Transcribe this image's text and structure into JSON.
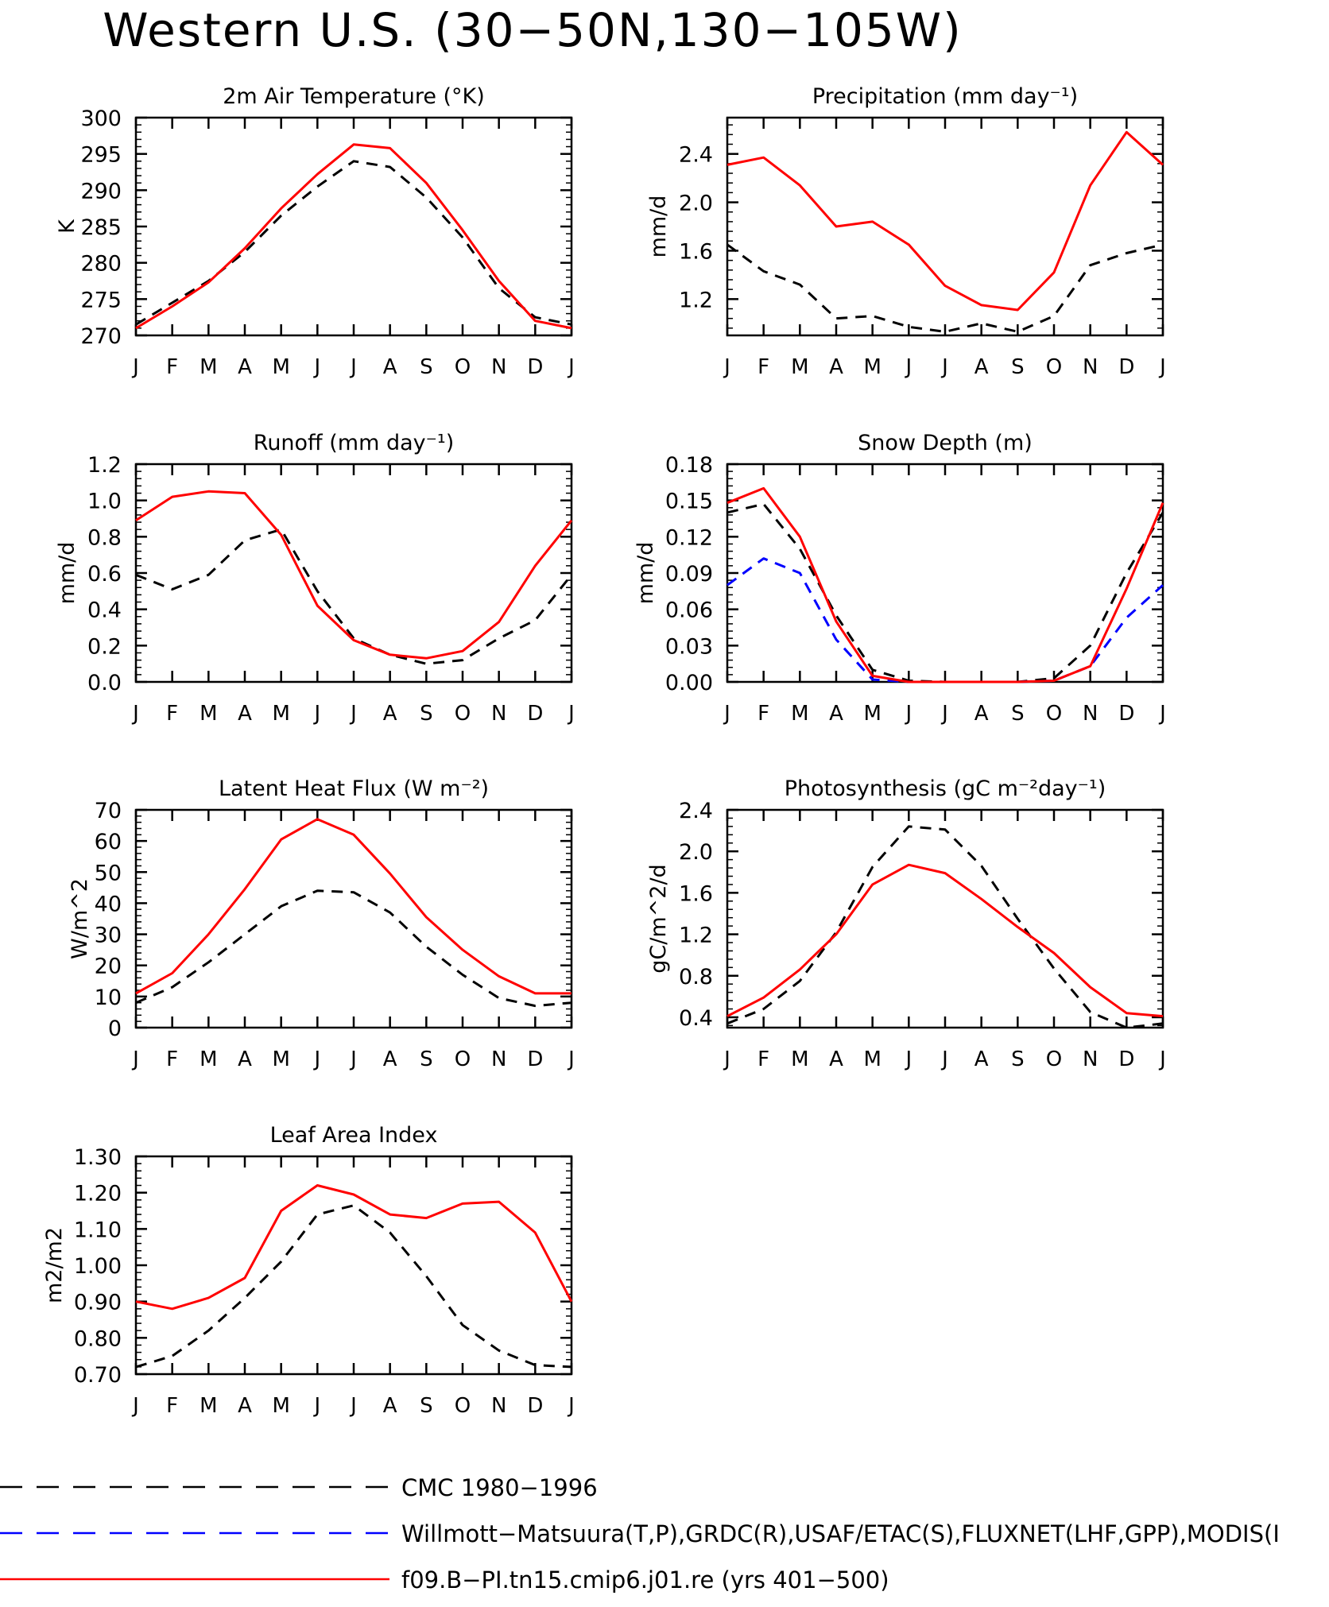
{
  "page": {
    "title": "Western U.S. (30−50N,130−105W)"
  },
  "legend": [
    {
      "label": "CMC 1980−1996",
      "color": "#000000",
      "dash": "dashed"
    },
    {
      "label": "Willmott−Matsuura(T,P),GRDC(R),USAF/ETAC(S),FLUXNET(LHF,GPP),MODIS(I",
      "color": "#0000ff",
      "dash": "dashed"
    },
    {
      "label": "f09.B−PI.tn15.cmip6.j01.re (yrs 401−500)",
      "color": "#ff0000",
      "dash": "solid"
    }
  ],
  "chart_data": [
    {
      "type": "line",
      "title": "2m Air Temperature (°K)",
      "ylabel": "K",
      "x": [
        "J",
        "F",
        "M",
        "A",
        "M",
        "J",
        "J",
        "A",
        "S",
        "O",
        "N",
        "D",
        "J"
      ],
      "ylim": [
        270,
        300
      ],
      "yticks": [
        270,
        275,
        280,
        285,
        290,
        295,
        300
      ],
      "ytick_labels": [
        "270",
        "275",
        "280",
        "285",
        "290",
        "295",
        "300"
      ],
      "series": [
        {
          "color": "#000000",
          "dash": "dashed",
          "values": [
            271.5,
            274.5,
            277.5,
            281.5,
            286.5,
            290.5,
            294,
            293.2,
            289,
            283.5,
            276.5,
            272.5,
            271.5
          ]
        },
        {
          "color": "#ff0000",
          "dash": "solid",
          "values": [
            271,
            274,
            277.3,
            282,
            287.5,
            292.2,
            296.3,
            295.8,
            291,
            284.5,
            277.5,
            272,
            271
          ]
        }
      ]
    },
    {
      "type": "line",
      "title": "Precipitation (mm day⁻¹)",
      "ylabel": "mm/d",
      "x": [
        "J",
        "F",
        "M",
        "A",
        "M",
        "J",
        "J",
        "A",
        "S",
        "O",
        "N",
        "D",
        "J"
      ],
      "ylim": [
        0.9,
        2.7
      ],
      "yticks": [
        1.2,
        1.6,
        2.0,
        2.4
      ],
      "ytick_labels": [
        "1.2",
        "1.6",
        "2.0",
        "2.4"
      ],
      "series": [
        {
          "color": "#000000",
          "dash": "dashed",
          "values": [
            1.65,
            1.43,
            1.32,
            1.04,
            1.06,
            0.97,
            0.93,
            1.0,
            0.93,
            1.06,
            1.48,
            1.58,
            1.65
          ]
        },
        {
          "color": "#ff0000",
          "dash": "solid",
          "values": [
            2.31,
            2.37,
            2.14,
            1.8,
            1.84,
            1.65,
            1.31,
            1.15,
            1.11,
            1.42,
            2.14,
            2.58,
            2.31
          ]
        }
      ]
    },
    {
      "type": "line",
      "title": "Runoff (mm day⁻¹)",
      "ylabel": "mm/d",
      "x": [
        "J",
        "F",
        "M",
        "A",
        "M",
        "J",
        "J",
        "A",
        "S",
        "O",
        "N",
        "D",
        "J"
      ],
      "ylim": [
        0,
        1.2
      ],
      "yticks": [
        0,
        0.2,
        0.4,
        0.6,
        0.8,
        1.0,
        1.2
      ],
      "ytick_labels": [
        "0.0",
        "0.2",
        "0.4",
        "0.6",
        "0.8",
        "1.0",
        "1.2"
      ],
      "series": [
        {
          "color": "#000000",
          "dash": "dashed",
          "values": [
            0.59,
            0.51,
            0.59,
            0.78,
            0.84,
            0.5,
            0.24,
            0.15,
            0.1,
            0.12,
            0.24,
            0.34,
            0.59
          ]
        },
        {
          "color": "#ff0000",
          "dash": "solid",
          "values": [
            0.89,
            1.02,
            1.05,
            1.04,
            0.81,
            0.42,
            0.23,
            0.15,
            0.13,
            0.17,
            0.33,
            0.64,
            0.89
          ]
        }
      ]
    },
    {
      "type": "line",
      "title": "Snow Depth (m)",
      "ylabel": "mm/d",
      "x": [
        "J",
        "F",
        "M",
        "A",
        "M",
        "J",
        "J",
        "A",
        "S",
        "O",
        "N",
        "D",
        "J"
      ],
      "ylim": [
        0,
        0.18
      ],
      "yticks": [
        0,
        0.03,
        0.06,
        0.09,
        0.12,
        0.15,
        0.18
      ],
      "ytick_labels": [
        "0.00",
        "0.03",
        "0.06",
        "0.09",
        "0.12",
        "0.15",
        "0.18"
      ],
      "series": [
        {
          "color": "#000000",
          "dash": "dashed",
          "values": [
            0.14,
            0.147,
            0.11,
            0.055,
            0.01,
            0.001,
            0,
            0,
            0,
            0.003,
            0.03,
            0.09,
            0.14
          ]
        },
        {
          "color": "#0000ff",
          "dash": "dashed",
          "values": [
            0.08,
            0.102,
            0.09,
            0.035,
            0.002,
            0,
            0,
            0,
            0,
            0.001,
            0.013,
            0.053,
            0.08
          ]
        },
        {
          "color": "#ff0000",
          "dash": "solid",
          "values": [
            0.148,
            0.16,
            0.12,
            0.05,
            0.005,
            0,
            0,
            0,
            0,
            0.001,
            0.013,
            0.077,
            0.148
          ]
        }
      ]
    },
    {
      "type": "line",
      "title": "Latent Heat Flux (W m⁻²)",
      "ylabel": "W/m^2",
      "x": [
        "J",
        "F",
        "M",
        "A",
        "M",
        "J",
        "J",
        "A",
        "S",
        "O",
        "N",
        "D",
        "J"
      ],
      "ylim": [
        0,
        70
      ],
      "yticks": [
        0,
        10,
        20,
        30,
        40,
        50,
        60,
        70
      ],
      "ytick_labels": [
        "0",
        "10",
        "20",
        "30",
        "40",
        "50",
        "60",
        "70"
      ],
      "series": [
        {
          "color": "#000000",
          "dash": "dashed",
          "values": [
            8,
            13,
            21,
            30,
            39,
            44,
            43.5,
            37,
            26,
            17,
            9.5,
            7,
            8
          ]
        },
        {
          "color": "#ff0000",
          "dash": "solid",
          "values": [
            11,
            17.5,
            30,
            44.5,
            60.5,
            67,
            62,
            49.5,
            35.5,
            25,
            16.5,
            11,
            11
          ]
        }
      ]
    },
    {
      "type": "line",
      "title": "Photosynthesis (gC m⁻²day⁻¹)",
      "ylabel": "gC/m^2/d",
      "x": [
        "J",
        "F",
        "M",
        "A",
        "M",
        "J",
        "J",
        "A",
        "S",
        "O",
        "N",
        "D",
        "J"
      ],
      "ylim": [
        0.3,
        2.4
      ],
      "yticks": [
        0.4,
        0.8,
        1.2,
        1.6,
        2.0,
        2.4
      ],
      "ytick_labels": [
        "0.4",
        "0.8",
        "1.2",
        "1.6",
        "2.0",
        "2.4"
      ],
      "series": [
        {
          "color": "#000000",
          "dash": "dashed",
          "values": [
            0.34,
            0.48,
            0.75,
            1.22,
            1.85,
            2.24,
            2.21,
            1.86,
            1.35,
            0.87,
            0.45,
            0.3,
            0.34
          ]
        },
        {
          "color": "#ff0000",
          "dash": "solid",
          "values": [
            0.41,
            0.59,
            0.86,
            1.2,
            1.68,
            1.87,
            1.79,
            1.54,
            1.27,
            1.02,
            0.69,
            0.44,
            0.41
          ]
        }
      ]
    },
    {
      "type": "line",
      "title": "Leaf Area Index",
      "ylabel": "m2/m2",
      "x": [
        "J",
        "F",
        "M",
        "A",
        "M",
        "J",
        "J",
        "A",
        "S",
        "O",
        "N",
        "D",
        "J"
      ],
      "ylim": [
        0.7,
        1.3
      ],
      "yticks": [
        0.7,
        0.8,
        0.9,
        1.0,
        1.1,
        1.2,
        1.3
      ],
      "ytick_labels": [
        "0.70",
        "0.80",
        "0.90",
        "1.00",
        "1.10",
        "1.20",
        "1.30"
      ],
      "series": [
        {
          "color": "#000000",
          "dash": "dashed",
          "values": [
            0.72,
            0.75,
            0.82,
            0.91,
            1.01,
            1.14,
            1.165,
            1.09,
            0.97,
            0.835,
            0.765,
            0.725,
            0.72
          ]
        },
        {
          "color": "#ff0000",
          "dash": "solid",
          "values": [
            0.9,
            0.88,
            0.91,
            0.965,
            1.15,
            1.22,
            1.195,
            1.14,
            1.13,
            1.17,
            1.175,
            1.09,
            0.9
          ]
        }
      ]
    }
  ]
}
